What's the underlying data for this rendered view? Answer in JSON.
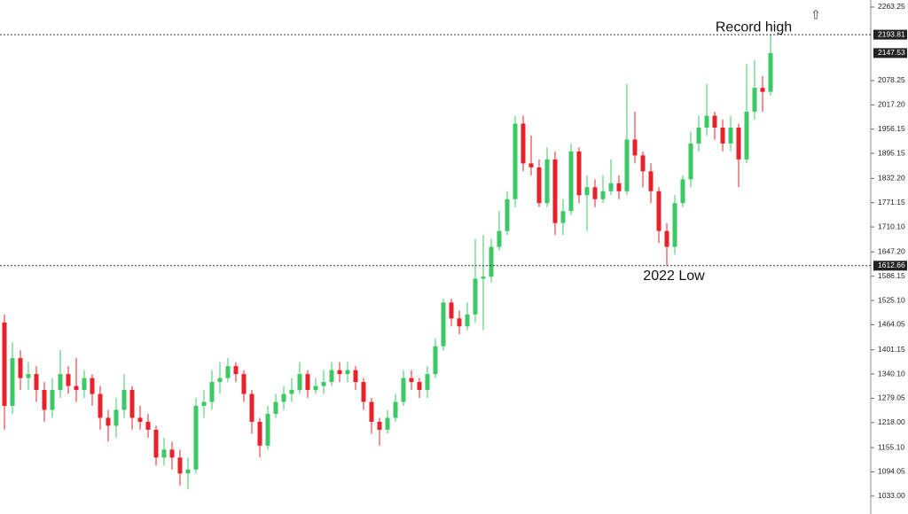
{
  "chart_data": {
    "type": "candlestick",
    "up_color": "#3cc864",
    "down_color": "#e8222a",
    "ylim": [
      988,
      2281
    ],
    "yticks": [
      2263.25,
      {
        "value": 2078.25,
        "label": "2078.25"
      },
      {
        "value": 2017.2,
        "label": "2017.20"
      },
      1956.15,
      1895.15,
      {
        "value": 1832.2,
        "label": "1832.20"
      },
      1771.15,
      {
        "value": 1710.1,
        "label": "1710.10"
      },
      {
        "value": 1647.2,
        "label": "1647.20"
      },
      1586.15,
      {
        "value": 1525.1,
        "label": "1525.10"
      },
      1464.05,
      1401.15,
      {
        "value": 1340.1,
        "label": "1340.10"
      },
      1279.05,
      {
        "value": 1218,
        "label": "1218.00"
      },
      {
        "value": 1155.1,
        "label": "1155.10"
      },
      1094.05,
      {
        "value": 1033,
        "label": "1033.00"
      }
    ],
    "reference_lines": [
      {
        "value": 2193.81,
        "text": "Record high"
      },
      {
        "value": 1612.66,
        "text": "2022 Low"
      }
    ],
    "last_price": 2147.53,
    "series": {
      "open": [
        1470,
        1260,
        1380,
        1330,
        1340,
        1300,
        1250,
        1300,
        1340,
        1310,
        1300,
        1330,
        1290,
        1230,
        1210,
        1250,
        1300,
        1230,
        1220,
        1200,
        1130,
        1150,
        1130,
        1090,
        1100,
        1260,
        1270,
        1320,
        1330,
        1360,
        1340,
        1290,
        1220,
        1160,
        1240,
        1270,
        1290,
        1300,
        1340,
        1300,
        1310,
        1320,
        1350,
        1340,
        1350,
        1320,
        1270,
        1220,
        1200,
        1230,
        1270,
        1330,
        1320,
        1300,
        1340,
        1410,
        1520,
        1480,
        1460,
        1490,
        1580,
        1585,
        1660,
        1700,
        1780,
        1970,
        1870,
        1860,
        1770,
        1880,
        1720,
        1750,
        1900,
        1790,
        1810,
        1780,
        1800,
        1820,
        1800,
        1930,
        1890,
        1850,
        1800,
        1700,
        1660,
        1770,
        1830,
        1920,
        1960,
        1990,
        1960,
        1920,
        1960,
        1880,
        2000,
        2060,
        2050
      ],
      "high": [
        1490,
        1420,
        1400,
        1370,
        1360,
        1320,
        1330,
        1400,
        1360,
        1380,
        1350,
        1340,
        1310,
        1250,
        1280,
        1340,
        1310,
        1260,
        1240,
        1210,
        1180,
        1170,
        1150,
        1130,
        1280,
        1300,
        1350,
        1370,
        1380,
        1370,
        1350,
        1300,
        1230,
        1260,
        1290,
        1310,
        1330,
        1370,
        1350,
        1330,
        1350,
        1370,
        1370,
        1370,
        1360,
        1330,
        1280,
        1230,
        1250,
        1290,
        1350,
        1350,
        1330,
        1360,
        1430,
        1530,
        1530,
        1500,
        1520,
        1680,
        1690,
        1680,
        1750,
        1800,
        1990,
        1990,
        1940,
        1880,
        1910,
        1900,
        1780,
        1920,
        1910,
        1840,
        1830,
        1840,
        1880,
        1840,
        2070,
        2000,
        1900,
        1870,
        1810,
        1720,
        1790,
        1840,
        1950,
        1990,
        2070,
        2000,
        1980,
        1990,
        1970,
        2120,
        2130,
        2090,
        2193.81
      ],
      "low": [
        1200,
        1240,
        1300,
        1300,
        1270,
        1220,
        1230,
        1280,
        1290,
        1270,
        1280,
        1260,
        1200,
        1170,
        1180,
        1230,
        1200,
        1200,
        1180,
        1110,
        1110,
        1100,
        1060,
        1050,
        1090,
        1230,
        1250,
        1290,
        1320,
        1320,
        1270,
        1190,
        1130,
        1150,
        1230,
        1250,
        1270,
        1290,
        1280,
        1290,
        1290,
        1310,
        1320,
        1320,
        1300,
        1250,
        1190,
        1160,
        1190,
        1220,
        1260,
        1300,
        1280,
        1280,
        1330,
        1400,
        1460,
        1440,
        1450,
        1470,
        1450,
        1570,
        1650,
        1690,
        1760,
        1850,
        1840,
        1760,
        1760,
        1690,
        1690,
        1740,
        1770,
        1700,
        1760,
        1770,
        1790,
        1780,
        1790,
        1870,
        1810,
        1770,
        1670,
        1612.66,
        1640,
        1760,
        1810,
        1900,
        1940,
        1930,
        1900,
        1900,
        1810,
        1870,
        1980,
        2000,
        2040
      ],
      "close": [
        1260,
        1380,
        1330,
        1340,
        1300,
        1250,
        1300,
        1340,
        1310,
        1300,
        1330,
        1290,
        1230,
        1210,
        1250,
        1300,
        1230,
        1220,
        1200,
        1130,
        1150,
        1130,
        1090,
        1100,
        1260,
        1270,
        1320,
        1330,
        1360,
        1340,
        1290,
        1220,
        1160,
        1240,
        1270,
        1290,
        1300,
        1340,
        1300,
        1310,
        1320,
        1350,
        1340,
        1350,
        1320,
        1270,
        1220,
        1200,
        1230,
        1270,
        1330,
        1320,
        1300,
        1340,
        1410,
        1520,
        1480,
        1460,
        1490,
        1580,
        1585,
        1660,
        1700,
        1780,
        1970,
        1870,
        1860,
        1770,
        1880,
        1720,
        1750,
        1900,
        1790,
        1810,
        1780,
        1800,
        1820,
        1800,
        1930,
        1890,
        1850,
        1800,
        1700,
        1660,
        1770,
        1830,
        1920,
        1960,
        1990,
        1960,
        1920,
        1960,
        1880,
        2000,
        2060,
        2050,
        2147.53
      ]
    }
  }
}
